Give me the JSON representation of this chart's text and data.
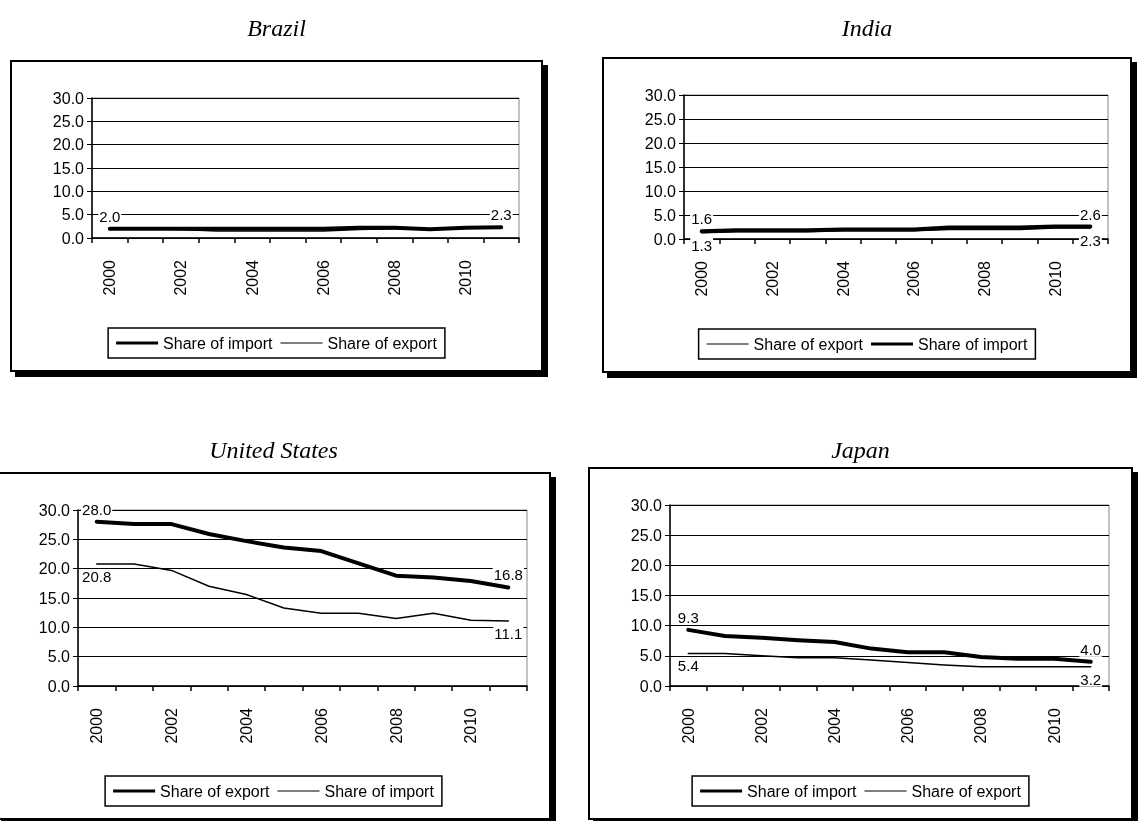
{
  "chart_data": [
    {
      "type": "line",
      "title": "Brazil",
      "categories": [
        "2000",
        null,
        "2002",
        null,
        "2004",
        null,
        "2006",
        null,
        "2008",
        null,
        "2010",
        null
      ],
      "ylim": [
        0,
        30
      ],
      "yticks": [
        {
          "value": 0,
          "label": "0.0"
        },
        {
          "value": 5,
          "label": "5.0"
        },
        {
          "value": 10,
          "label": "10.0"
        },
        {
          "value": 15,
          "label": "15.0"
        },
        {
          "value": 20,
          "label": "20.0"
        },
        {
          "value": 25,
          "label": "25.0"
        },
        {
          "value": 30,
          "label": "30.0"
        }
      ],
      "grid": "y",
      "legend": "bottom",
      "marker": "none",
      "line_style": "solid",
      "series": [
        {
          "name": "Share of import",
          "color": "#000000",
          "values": [
            2.0,
            2.0,
            2.0,
            2.0,
            2.0,
            2.0,
            2.0,
            2.2,
            2.2,
            1.9,
            2.2,
            2.3
          ],
          "value_labels": [
            "2.0",
            null,
            null,
            null,
            null,
            null,
            null,
            null,
            null,
            null,
            null,
            "2.3"
          ]
        },
        {
          "name": "Share of export",
          "color": "#000000",
          "values": [
            2.0,
            2.0,
            1.8,
            1.5,
            1.5,
            1.5,
            1.5,
            1.8,
            2.0,
            2.0,
            2.1,
            2.2
          ]
        }
      ]
    },
    {
      "type": "line",
      "title": "India",
      "categories": [
        "2000",
        null,
        "2002",
        null,
        "2004",
        null,
        "2006",
        null,
        "2008",
        null,
        "2010",
        null
      ],
      "ylim": [
        0,
        30
      ],
      "yticks": [
        {
          "value": 0,
          "label": "0.0"
        },
        {
          "value": 5,
          "label": "5.0"
        },
        {
          "value": 10,
          "label": "10.0"
        },
        {
          "value": 15,
          "label": "15.0"
        },
        {
          "value": 20,
          "label": "20.0"
        },
        {
          "value": 25,
          "label": "25.0"
        },
        {
          "value": 30,
          "label": "30.0"
        }
      ],
      "grid": "y",
      "legend": "bottom",
      "marker": "none",
      "line_style": "solid",
      "series": [
        {
          "name": "Share of export",
          "color": "#000000",
          "values": [
            1.3,
            1.5,
            1.5,
            1.5,
            1.7,
            1.7,
            1.7,
            2.0,
            2.0,
            2.0,
            2.3,
            2.3
          ],
          "value_labels": [
            "1.3",
            null,
            null,
            null,
            null,
            null,
            null,
            null,
            null,
            null,
            null,
            "2.3"
          ]
        },
        {
          "name": "Share of import",
          "color": "#000000",
          "values": [
            1.6,
            1.8,
            1.8,
            1.8,
            2.0,
            2.0,
            2.0,
            2.4,
            2.4,
            2.4,
            2.6,
            2.6
          ],
          "value_labels": [
            "1.6",
            null,
            null,
            null,
            null,
            null,
            null,
            null,
            null,
            null,
            null,
            "2.6"
          ]
        }
      ]
    },
    {
      "type": "line",
      "title": "United States",
      "categories": [
        "2000",
        null,
        "2002",
        null,
        "2004",
        null,
        "2006",
        null,
        "2008",
        null,
        "2010",
        null
      ],
      "ylim": [
        0,
        30
      ],
      "yticks": [
        {
          "value": 0,
          "label": "0.0"
        },
        {
          "value": 5,
          "label": "5.0"
        },
        {
          "value": 10,
          "label": "10.0"
        },
        {
          "value": 15,
          "label": "15.0"
        },
        {
          "value": 20,
          "label": "20.0"
        },
        {
          "value": 25,
          "label": "25.0"
        },
        {
          "value": 30,
          "label": "30.0"
        }
      ],
      "grid": "y",
      "legend": "bottom",
      "marker": "none",
      "line_style": "solid",
      "series": [
        {
          "name": "Share of export",
          "color": "#000000",
          "values": [
            28.0,
            27.6,
            27.6,
            25.9,
            24.7,
            23.6,
            23.0,
            20.9,
            18.8,
            18.5,
            17.9,
            16.8
          ],
          "value_labels": [
            "28.0",
            null,
            null,
            null,
            null,
            null,
            null,
            null,
            null,
            null,
            null,
            "16.8"
          ]
        },
        {
          "name": "Share of import",
          "color": "#000000",
          "values": [
            20.8,
            20.8,
            19.7,
            17.0,
            15.6,
            13.3,
            12.4,
            12.4,
            11.5,
            12.4,
            11.2,
            11.1
          ],
          "value_labels": [
            "20.8",
            null,
            null,
            null,
            null,
            null,
            null,
            null,
            null,
            null,
            null,
            "11.1"
          ]
        }
      ]
    },
    {
      "type": "line",
      "title": "Japan",
      "categories": [
        "2000",
        null,
        "2002",
        null,
        "2004",
        null,
        "2006",
        null,
        "2008",
        null,
        "2010",
        null
      ],
      "ylim": [
        0,
        30
      ],
      "yticks": [
        {
          "value": 0,
          "label": "0.0"
        },
        {
          "value": 5,
          "label": "5.0"
        },
        {
          "value": 10,
          "label": "10.0"
        },
        {
          "value": 15,
          "label": "15.0"
        },
        {
          "value": 20,
          "label": "20.0"
        },
        {
          "value": 25,
          "label": "25.0"
        },
        {
          "value": 30,
          "label": "30.0"
        }
      ],
      "grid": "y",
      "legend": "bottom",
      "marker": "none",
      "line_style": "solid",
      "series": [
        {
          "name": "Share of import",
          "color": "#000000",
          "values": [
            9.3,
            8.3,
            8.0,
            7.6,
            7.3,
            6.2,
            5.6,
            5.6,
            4.8,
            4.5,
            4.5,
            4.0
          ],
          "value_labels": [
            "9.3",
            null,
            null,
            null,
            null,
            null,
            null,
            null,
            null,
            null,
            null,
            "4.0"
          ]
        },
        {
          "name": "Share of export",
          "color": "#000000",
          "values": [
            5.4,
            5.4,
            5.0,
            4.7,
            4.7,
            4.3,
            3.9,
            3.5,
            3.2,
            3.2,
            3.2,
            3.2
          ],
          "value_labels": [
            "5.4",
            null,
            null,
            null,
            null,
            null,
            null,
            null,
            null,
            null,
            null,
            "3.2"
          ]
        }
      ]
    }
  ]
}
